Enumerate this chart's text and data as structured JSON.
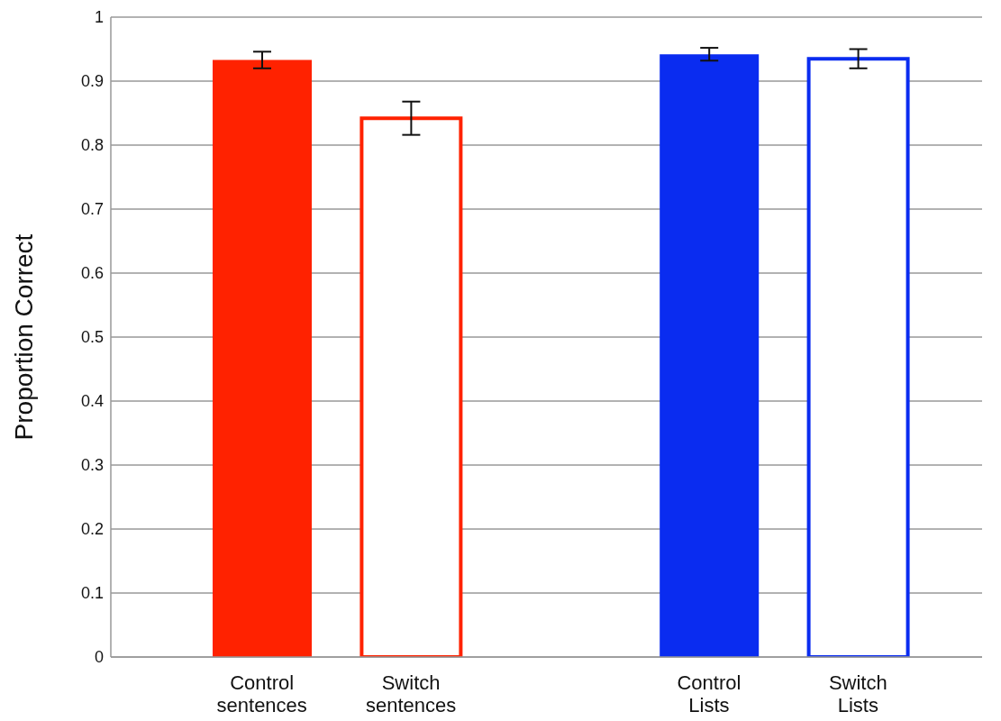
{
  "chart_data": {
    "type": "bar",
    "ylabel": "Proportion Correct",
    "categories": [
      "Control sentences",
      "Switch sentences",
      null,
      "Control Lists",
      "Switch Lists"
    ],
    "stacked": true,
    "series": [
      {
        "colors": [
          "#ff2200",
          null,
          null,
          "#0a2cf0",
          null
        ],
        "values": [
          0.933,
          null,
          null,
          0.942,
          null
        ],
        "errors": [
          0.013,
          null,
          null,
          0.01,
          null
        ]
      },
      {
        "colors": [
          null,
          "#ff2200",
          null,
          null,
          "#0a2cf0"
        ],
        "values": [
          null,
          0.842,
          null,
          null,
          0.935
        ],
        "errors": [
          null,
          0.026,
          null,
          null,
          0.015
        ]
      }
    ],
    "ylim": [
      0,
      1
    ],
    "yticks": [
      0,
      0.1,
      0.2,
      0.3,
      0.4,
      0.5,
      0.6,
      0.7,
      0.8,
      0.9,
      1
    ],
    "grid": "y"
  }
}
